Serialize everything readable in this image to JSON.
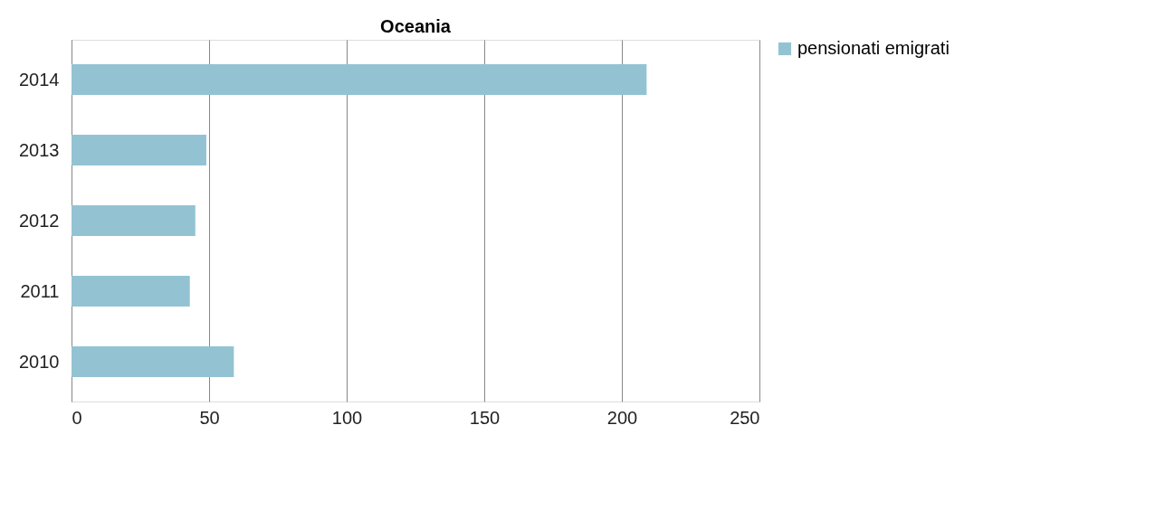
{
  "chart_data": {
    "type": "bar",
    "orientation": "horizontal",
    "title": "Oceania",
    "categories": [
      "2014",
      "2013",
      "2012",
      "2011",
      "2010"
    ],
    "series": [
      {
        "name": "pensionati emigrati",
        "color": "#93c3d3",
        "values": [
          209,
          49,
          45,
          43,
          59
        ]
      }
    ],
    "xlim": [
      0,
      250
    ],
    "xticks": [
      0,
      50,
      100,
      150,
      200,
      250
    ],
    "grid": "x",
    "legend": "right"
  }
}
